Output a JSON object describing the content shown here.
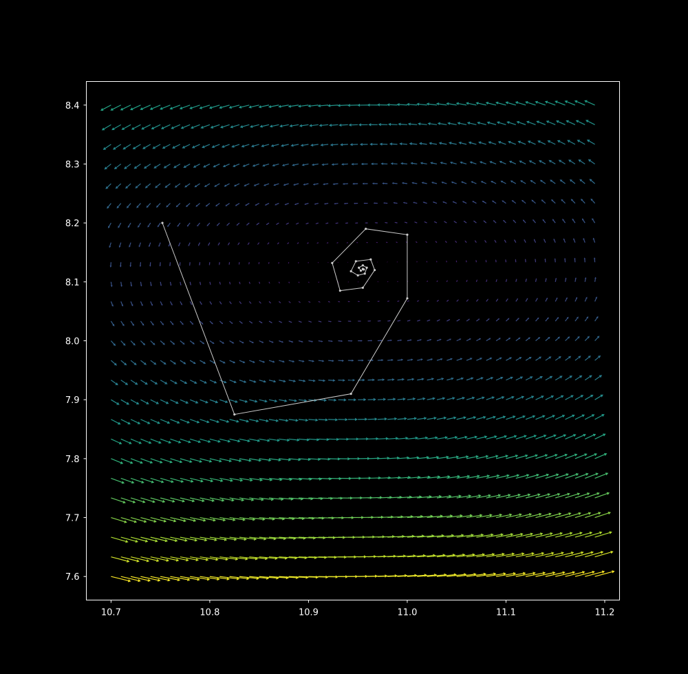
{
  "chart_data": {
    "type": "quiver",
    "title": "",
    "xlabel": "",
    "ylabel": "",
    "xlim": [
      10.675,
      11.215
    ],
    "ylim": [
      7.56,
      8.44
    ],
    "xticks": [
      10.7,
      10.8,
      10.9,
      11.0,
      11.1,
      11.2
    ],
    "xtick_labels": [
      "10.7",
      "10.8",
      "10.9",
      "11.0",
      "11.1",
      "11.2"
    ],
    "yticks": [
      7.6,
      7.7,
      7.8,
      7.9,
      8.0,
      8.1,
      8.2,
      8.3,
      8.4
    ],
    "ytick_labels": [
      "7.6",
      "7.7",
      "7.8",
      "7.9",
      "8.0",
      "8.1",
      "8.2",
      "8.3",
      "8.4"
    ],
    "grid": false,
    "background": "#000000",
    "axes_color": "#ffffff",
    "field": {
      "x_start": 10.7,
      "x_end": 11.19,
      "nx": 50,
      "y_start": 7.6,
      "y_end": 8.4,
      "ny": 25,
      "equilibrium": [
        10.955,
        8.122
      ],
      "dx_dt": "x - 0.8*x*y/8.1 (scaled)",
      "dy_dt": "y*(x/10.955 - 1) (scaled)",
      "colormap": "viridis"
    },
    "trajectory": {
      "color": "#cccccc",
      "points": [
        [
          10.752,
          8.2
        ],
        [
          10.825,
          7.875
        ],
        [
          10.943,
          7.91
        ],
        [
          11.0,
          8.072
        ],
        [
          11.0,
          8.18
        ],
        [
          10.958,
          8.19
        ],
        [
          10.924,
          8.132
        ],
        [
          10.932,
          8.085
        ],
        [
          10.955,
          8.09
        ],
        [
          10.967,
          8.12
        ],
        [
          10.963,
          8.138
        ],
        [
          10.948,
          8.135
        ],
        [
          10.943,
          8.118
        ],
        [
          10.95,
          8.111
        ],
        [
          10.957,
          8.114
        ],
        [
          10.959,
          8.124
        ],
        [
          10.955,
          8.128
        ],
        [
          10.951,
          8.124
        ],
        [
          10.953,
          8.119
        ],
        [
          10.956,
          8.121
        ],
        [
          10.955,
          8.122
        ]
      ]
    }
  }
}
